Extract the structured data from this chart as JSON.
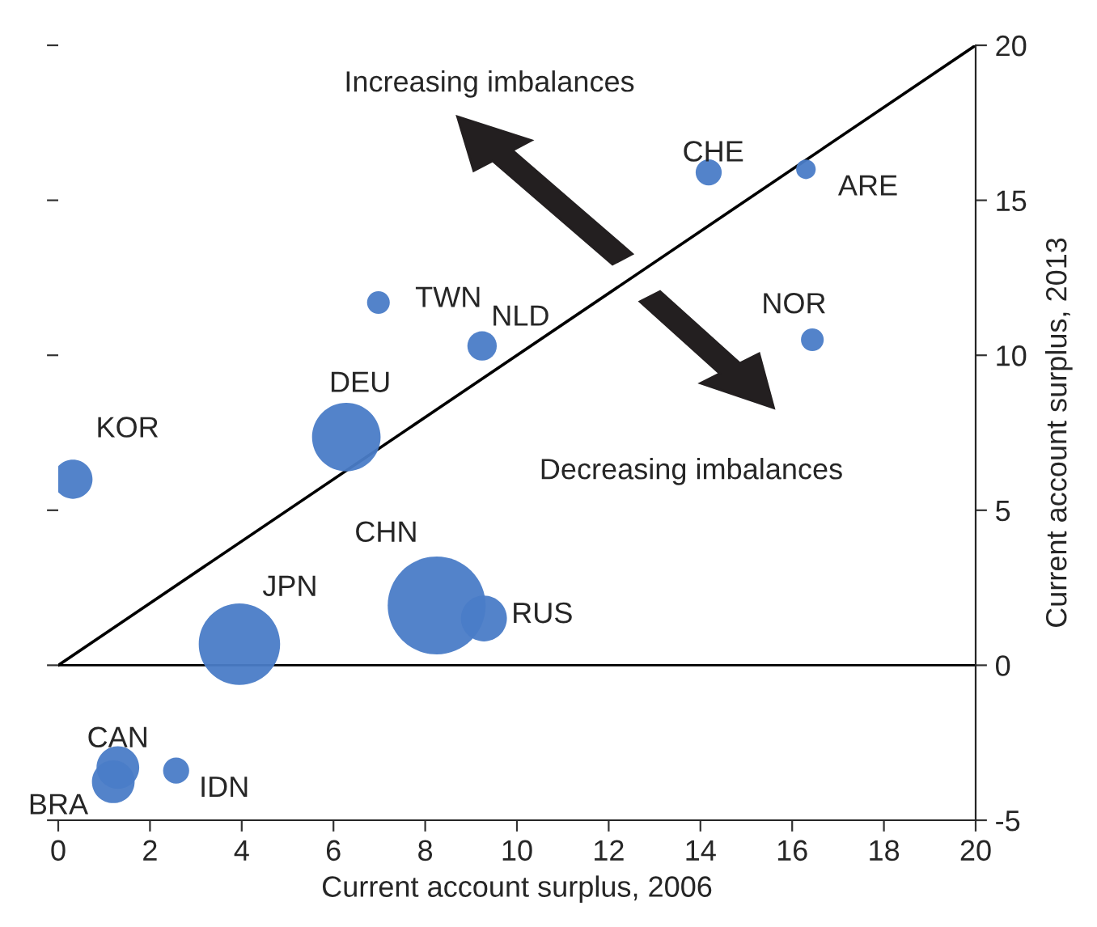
{
  "chart_data": {
    "type": "bubble",
    "xlabel": "Current account surplus, 2006",
    "ylabel": "Current account surplus, 2013",
    "xlim": [
      0,
      20
    ],
    "xticks": [
      0,
      2,
      4,
      6,
      8,
      10,
      12,
      14,
      16,
      18,
      20
    ],
    "ylim": [
      -5,
      20
    ],
    "yticks": [
      -5,
      0,
      5,
      10,
      15,
      20
    ],
    "grid": false,
    "legend": false,
    "marker": "circle",
    "series": [
      {
        "name": "KOR",
        "color": "#4a7cc7",
        "x": [
          0.32
        ],
        "values": [
          6.0
        ],
        "sizes": [
          0.16
        ]
      },
      {
        "name": "DEU",
        "color": "#4a7cc7",
        "x": [
          6.28
        ],
        "values": [
          7.36
        ],
        "sizes": [
          0.49
        ]
      },
      {
        "name": "TWN",
        "color": "#4a7cc7",
        "x": [
          6.98
        ],
        "values": [
          11.7
        ],
        "sizes": [
          0.054
        ]
      },
      {
        "name": "NLD",
        "color": "#4a7cc7",
        "x": [
          9.24
        ],
        "values": [
          10.3
        ],
        "sizes": [
          0.09
        ]
      },
      {
        "name": "CHE",
        "color": "#4a7cc7",
        "x": [
          14.18
        ],
        "values": [
          15.9
        ],
        "sizes": [
          0.071
        ]
      },
      {
        "name": "ARE",
        "color": "#4a7cc7",
        "x": [
          16.3
        ],
        "values": [
          16.0
        ],
        "sizes": [
          0.04
        ]
      },
      {
        "name": "NOR",
        "color": "#4a7cc7",
        "x": [
          16.44
        ],
        "values": [
          10.5
        ],
        "sizes": [
          0.054
        ]
      },
      {
        "name": "JPN",
        "color": "#4a7cc7",
        "x": [
          3.95
        ],
        "values": [
          0.68
        ],
        "sizes": [
          0.69
        ]
      },
      {
        "name": "CHN",
        "color": "#4a7cc7",
        "x": [
          8.25
        ],
        "values": [
          1.93
        ],
        "sizes": [
          1
        ]
      },
      {
        "name": "RUS",
        "color": "#4a7cc7",
        "x": [
          9.28
        ],
        "values": [
          1.51
        ],
        "sizes": [
          0.22
        ]
      },
      {
        "name": "CAN",
        "color": "#4a7cc7",
        "x": [
          1.3
        ],
        "values": [
          -3.3
        ],
        "sizes": [
          0.19
        ]
      },
      {
        "name": "BRA",
        "color": "#4a7cc7",
        "x": [
          1.2
        ],
        "values": [
          -3.76
        ],
        "sizes": [
          0.19
        ]
      },
      {
        "name": "IDN",
        "color": "#4a7cc7",
        "x": [
          2.57
        ],
        "values": [
          -3.4
        ],
        "sizes": [
          0.071
        ]
      },
      {
        "type": "line",
        "color": "#000000",
        "marker": "none",
        "x": [
          0,
          20
        ],
        "values": [
          0,
          20
        ]
      }
    ],
    "ref_lines": [
      {
        "axis": "y",
        "value": 0,
        "color": "#000000"
      }
    ],
    "annotations": [
      "Increasing imbalances",
      "Decreasing imbalances"
    ]
  }
}
